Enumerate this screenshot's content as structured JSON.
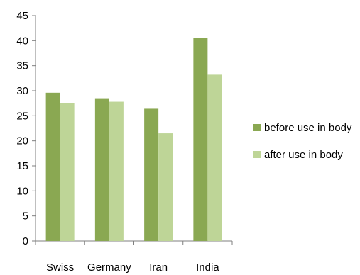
{
  "chart_data": {
    "type": "bar",
    "categories": [
      "Swiss",
      "Germany",
      "Iran",
      "India"
    ],
    "series": [
      {
        "name": "before use in body",
        "values": [
          29.6,
          28.5,
          26.4,
          40.6
        ],
        "color": "#8aa852"
      },
      {
        "name": "after use in body",
        "values": [
          27.5,
          27.8,
          21.5,
          33.2
        ],
        "color": "#bed597"
      }
    ],
    "ylim": [
      0,
      45
    ],
    "yticks": [
      0,
      5,
      10,
      15,
      20,
      25,
      30,
      35,
      40,
      45
    ],
    "grid": false,
    "legend_position": "right"
  }
}
